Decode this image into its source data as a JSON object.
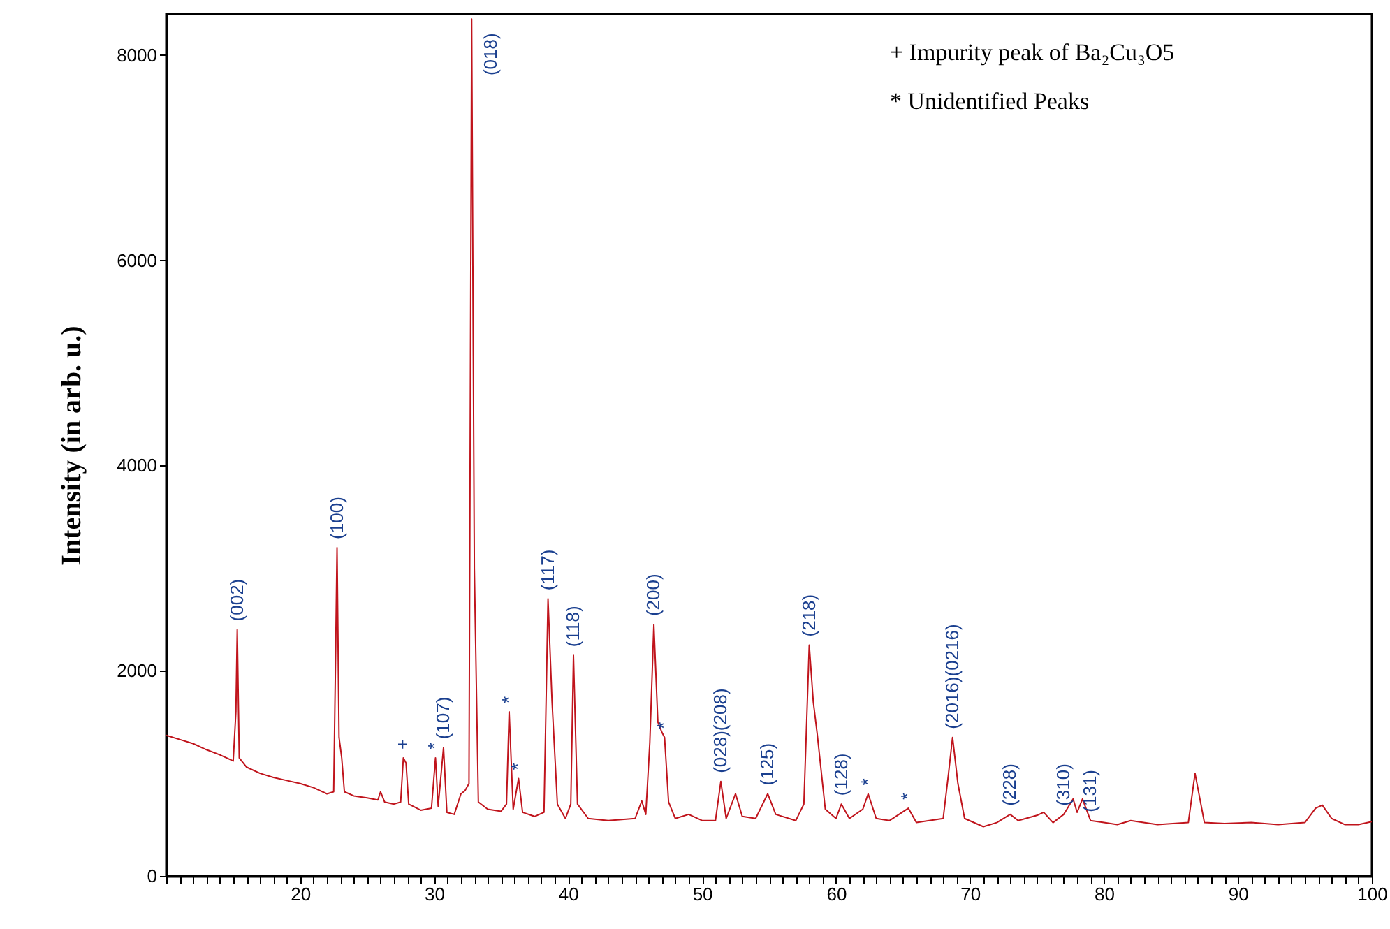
{
  "chart_data": {
    "type": "line",
    "ylabel": "Intensity (in arb. u.)",
    "x": [
      10,
      11,
      12,
      13,
      14,
      15,
      15.2,
      15.3,
      15.45,
      16,
      17,
      18,
      19,
      20,
      21,
      22,
      22.5,
      22.65,
      22.75,
      22.9,
      23.1,
      23.3,
      24,
      25,
      25.8,
      26,
      26.3,
      27,
      27.5,
      27.7,
      27.9,
      28.1,
      29,
      29.8,
      30.1,
      30.3,
      30.7,
      30.95,
      31.5,
      32,
      32.3,
      32.6,
      32.8,
      33.0,
      33.3,
      34,
      35,
      35.4,
      35.6,
      35.9,
      36.3,
      36.6,
      37.5,
      38.2,
      38.5,
      38.8,
      39.2,
      39.8,
      40.2,
      40.4,
      40.7,
      41.5,
      43,
      45,
      45.5,
      45.8,
      46.1,
      46.4,
      46.7,
      47.0,
      47.2,
      47.5,
      48,
      49,
      50,
      51.0,
      51.4,
      51.8,
      52.5,
      53,
      54,
      54.9,
      55.5,
      57,
      57.6,
      58.0,
      58.3,
      58.6,
      59.2,
      60,
      60.4,
      61,
      62,
      62.4,
      63,
      64,
      65.4,
      66,
      68,
      68.4,
      68.7,
      69.1,
      69.6,
      71,
      72,
      73,
      73.6,
      75,
      75.5,
      76.2,
      77,
      77.7,
      78,
      78.4,
      79,
      80,
      81,
      82,
      84,
      86.3,
      86.8,
      87.5,
      89,
      91,
      93,
      95,
      95.8,
      96.3,
      97,
      98,
      99,
      100
    ],
    "series": [
      {
        "color": "#c0141c",
        "values": [
          1370,
          1330,
          1290,
          1230,
          1180,
          1120,
          1600,
          2400,
          1150,
          1060,
          1000,
          960,
          930,
          900,
          860,
          800,
          820,
          2200,
          3200,
          1350,
          1150,
          820,
          780,
          760,
          740,
          820,
          720,
          700,
          720,
          1150,
          1100,
          700,
          640,
          660,
          1150,
          680,
          1250,
          620,
          600,
          800,
          830,
          900,
          8350,
          3000,
          720,
          650,
          630,
          700,
          1600,
          650,
          950,
          620,
          580,
          620,
          2700,
          1700,
          700,
          560,
          700,
          2150,
          700,
          560,
          540,
          560,
          730,
          600,
          1300,
          2450,
          1500,
          1400,
          1350,
          720,
          560,
          600,
          540,
          540,
          920,
          560,
          800,
          580,
          560,
          800,
          600,
          540,
          700,
          2250,
          1700,
          1380,
          650,
          560,
          700,
          560,
          650,
          800,
          560,
          540,
          660,
          520,
          560,
          1000,
          1350,
          900,
          560,
          480,
          520,
          600,
          540,
          590,
          620,
          520,
          600,
          750,
          620,
          750,
          540,
          520,
          500,
          540,
          500,
          520,
          1000,
          520,
          510,
          520,
          500,
          520,
          660,
          690,
          560,
          500,
          500,
          530
        ]
      }
    ],
    "xlim": [
      10,
      100
    ],
    "ylim": [
      0,
      8400
    ],
    "xticks": [
      {
        "value": 10,
        "label": null
      },
      {
        "value": 11,
        "label": null
      },
      {
        "value": 12,
        "label": null
      },
      {
        "value": 13,
        "label": null
      },
      {
        "value": 14,
        "label": null
      },
      {
        "value": 15,
        "label": null
      },
      {
        "value": 16,
        "label": null
      },
      {
        "value": 17,
        "label": null
      },
      {
        "value": 18,
        "label": null
      },
      {
        "value": 19,
        "label": null
      },
      20,
      {
        "value": 21,
        "label": null
      },
      {
        "value": 22,
        "label": null
      },
      {
        "value": 23,
        "label": null
      },
      {
        "value": 24,
        "label": null
      },
      {
        "value": 25,
        "label": null
      },
      {
        "value": 26,
        "label": null
      },
      {
        "value": 27,
        "label": null
      },
      {
        "value": 28,
        "label": null
      },
      {
        "value": 29,
        "label": null
      },
      30,
      {
        "value": 31,
        "label": null
      },
      {
        "value": 32,
        "label": null
      },
      {
        "value": 33,
        "label": null
      },
      {
        "value": 34,
        "label": null
      },
      {
        "value": 35,
        "label": null
      },
      {
        "value": 36,
        "label": null
      },
      {
        "value": 37,
        "label": null
      },
      {
        "value": 38,
        "label": null
      },
      {
        "value": 39,
        "label": null
      },
      40,
      {
        "value": 41,
        "label": null
      },
      {
        "value": 42,
        "label": null
      },
      {
        "value": 43,
        "label": null
      },
      {
        "value": 44,
        "label": null
      },
      {
        "value": 45,
        "label": null
      },
      {
        "value": 46,
        "label": null
      },
      {
        "value": 47,
        "label": null
      },
      {
        "value": 48,
        "label": null
      },
      {
        "value": 49,
        "label": null
      },
      50,
      {
        "value": 51,
        "label": null
      },
      {
        "value": 52,
        "label": null
      },
      {
        "value": 53,
        "label": null
      },
      {
        "value": 54,
        "label": null
      },
      {
        "value": 55,
        "label": null
      },
      {
        "value": 56,
        "label": null
      },
      {
        "value": 57,
        "label": null
      },
      {
        "value": 58,
        "label": null
      },
      {
        "value": 59,
        "label": null
      },
      60,
      {
        "value": 61,
        "label": null
      },
      {
        "value": 62,
        "label": null
      },
      {
        "value": 63,
        "label": null
      },
      {
        "value": 64,
        "label": null
      },
      {
        "value": 65,
        "label": null
      },
      {
        "value": 66,
        "label": null
      },
      {
        "value": 67,
        "label": null
      },
      {
        "value": 68,
        "label": null
      },
      {
        "value": 69,
        "label": null
      },
      70,
      {
        "value": 71,
        "label": null
      },
      {
        "value": 72,
        "label": null
      },
      {
        "value": 73,
        "label": null
      },
      {
        "value": 74,
        "label": null
      },
      {
        "value": 75,
        "label": null
      },
      {
        "value": 76,
        "label": null
      },
      {
        "value": 77,
        "label": null
      },
      {
        "value": 78,
        "label": null
      },
      {
        "value": 79,
        "label": null
      },
      80,
      {
        "value": 81,
        "label": null
      },
      {
        "value": 82,
        "label": null
      },
      {
        "value": 83,
        "label": null
      },
      {
        "value": 84,
        "label": null
      },
      {
        "value": 85,
        "label": null
      },
      {
        "value": 86,
        "label": null
      },
      {
        "value": 87,
        "label": null
      },
      {
        "value": 88,
        "label": null
      },
      {
        "value": 89,
        "label": null
      },
      90,
      {
        "value": 91,
        "label": null
      },
      {
        "value": 92,
        "label": null
      },
      {
        "value": 93,
        "label": null
      },
      {
        "value": 94,
        "label": null
      },
      {
        "value": 95,
        "label": null
      },
      {
        "value": 96,
        "label": null
      },
      {
        "value": 97,
        "label": null
      },
      {
        "value": 98,
        "label": null
      },
      {
        "value": 99,
        "label": null
      },
      100
    ],
    "yticks": [
      0,
      2000,
      4000,
      6000,
      8000
    ],
    "grid": false,
    "marker": "none",
    "line_style": "solid",
    "annotations": [
      "+  Impurity peak of Ba₂Cu₃O5",
      "*   Unidentified Peaks",
      {
        "text": "(002)",
        "x": 15.3,
        "y": 2400
      },
      {
        "text": "(100)",
        "x": 22.75,
        "y": 3200
      },
      {
        "text": "+",
        "x": 27.7,
        "y": 1150
      },
      {
        "text": "*",
        "x": 30.1,
        "y": 1150
      },
      {
        "text": "(107)",
        "x": 30.7,
        "y": 1250
      },
      {
        "text": "(018)",
        "x": 32.8,
        "y": 8350
      },
      {
        "text": "*",
        "x": 35.6,
        "y": 1600
      },
      {
        "text": "*",
        "x": 36.3,
        "y": 950
      },
      {
        "text": "(117)",
        "x": 38.5,
        "y": 2700
      },
      {
        "text": "(118)",
        "x": 40.4,
        "y": 2150
      },
      {
        "text": "(200)",
        "x": 46.4,
        "y": 2450
      },
      {
        "text": "*",
        "x": 47.2,
        "y": 1350
      },
      {
        "text": "(028)(208)",
        "x": 51.4,
        "y": 920
      },
      {
        "text": "(125)",
        "x": 54.9,
        "y": 800
      },
      {
        "text": "(218)",
        "x": 58.0,
        "y": 2250
      },
      {
        "text": "(128)",
        "x": 60.4,
        "y": 700
      },
      {
        "text": "*",
        "x": 62.4,
        "y": 800
      },
      {
        "text": "*",
        "x": 65.4,
        "y": 660
      },
      {
        "text": "(2016)(0216)",
        "x": 68.7,
        "y": 1350
      },
      {
        "text": "(228)",
        "x": 73.0,
        "y": 600
      },
      {
        "text": "(310)",
        "x": 77,
        "y": 600
      },
      {
        "text": "(131)",
        "x": 79,
        "y": 540
      }
    ]
  }
}
